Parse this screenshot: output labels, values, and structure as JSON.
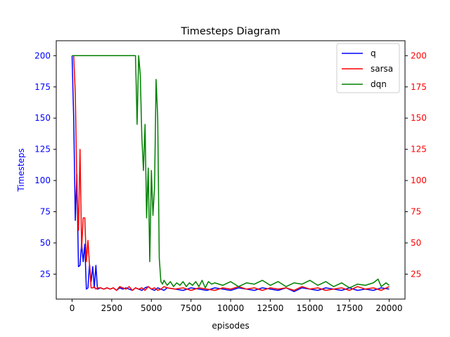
{
  "chart_data": {
    "type": "line",
    "title": "Timesteps Diagram",
    "xlabel": "episodes",
    "ylabel": "Timesteps",
    "xlim": [
      -1000,
      21000
    ],
    "ylim": [
      5,
      212
    ],
    "xticks": [
      0,
      2500,
      5000,
      7500,
      10000,
      12500,
      15000,
      17500,
      20000
    ],
    "yticks": [
      25,
      50,
      75,
      100,
      125,
      150,
      175,
      200
    ],
    "left_axis_color": "#0000ff",
    "right_axis_color": "#ff0000",
    "legend_position": "top-right",
    "grid": false,
    "series": [
      {
        "name": "q",
        "color": "#0000ff",
        "axis": "left",
        "x": [
          0,
          100,
          200,
          300,
          400,
          500,
          600,
          700,
          800,
          900,
          1000,
          1100,
          1200,
          1300,
          1400,
          1500,
          1600,
          1800,
          2000,
          2200,
          2400,
          2600,
          2800,
          3000,
          3200,
          3400,
          3600,
          3800,
          4000,
          4200,
          4400,
          4600,
          4800,
          5000,
          5200,
          5400,
          5600,
          5800,
          6000,
          6500,
          7000,
          7500,
          8000,
          8500,
          9000,
          9500,
          10000,
          10500,
          11000,
          11500,
          12000,
          12500,
          13000,
          13500,
          14000,
          14500,
          15000,
          15500,
          16000,
          16500,
          17000,
          17500,
          18000,
          18500,
          19000,
          19500,
          20000
        ],
        "y": [
          200,
          150,
          68,
          105,
          31,
          32,
          50,
          35,
          49,
          13,
          14,
          33,
          19,
          31,
          14,
          32,
          13,
          14,
          13,
          14,
          13,
          14,
          12,
          14,
          13,
          14,
          13,
          12,
          14,
          13,
          12,
          14,
          15,
          13,
          12,
          14,
          13,
          12,
          14,
          13,
          12,
          14,
          13,
          12,
          14,
          13,
          12,
          14,
          13,
          12,
          14,
          13,
          12,
          14,
          11,
          14,
          13,
          12,
          14,
          13,
          12,
          14,
          12,
          13,
          12,
          14,
          13
        ]
      },
      {
        "name": "sarsa",
        "color": "#ff0000",
        "axis": "right",
        "x": [
          0,
          100,
          200,
          300,
          400,
          500,
          600,
          700,
          800,
          900,
          1000,
          1100,
          1200,
          1300,
          1400,
          1500,
          1600,
          1800,
          2000,
          2200,
          2400,
          2600,
          2800,
          3000,
          3200,
          3400,
          3600,
          3800,
          4000,
          4200,
          4400,
          4600,
          4800,
          5000,
          5200,
          5400,
          5600,
          5800,
          6000,
          6500,
          7000,
          7500,
          8000,
          8500,
          9000,
          9500,
          10000,
          10500,
          11000,
          11500,
          12000,
          12500,
          13000,
          13500,
          14000,
          14500,
          15000,
          15500,
          16000,
          16500,
          17000,
          17500,
          18000,
          18500,
          19000,
          19500,
          20000
        ],
        "y": [
          200,
          200,
          170,
          95,
          60,
          125,
          45,
          70,
          70,
          35,
          52,
          32,
          14,
          14,
          15,
          13,
          14,
          14,
          13,
          14,
          13,
          14,
          12,
          15,
          14,
          13,
          15,
          12,
          14,
          13,
          14,
          12,
          15,
          13,
          14,
          12,
          13,
          15,
          14,
          13,
          14,
          12,
          14,
          13,
          12,
          14,
          13,
          15,
          13,
          14,
          12,
          14,
          13,
          14,
          12,
          15,
          13,
          14,
          12,
          13,
          14,
          12,
          15,
          13,
          14,
          12,
          15
        ]
      },
      {
        "name": "dqn",
        "color": "#008000",
        "axis": "left",
        "x": [
          0,
          500,
          1000,
          1500,
          2000,
          2500,
          3000,
          3500,
          4000,
          4100,
          4200,
          4300,
          4400,
          4500,
          4600,
          4700,
          4800,
          4900,
          5000,
          5100,
          5200,
          5300,
          5400,
          5500,
          5600,
          5700,
          5800,
          6000,
          6200,
          6400,
          6600,
          6800,
          7000,
          7200,
          7400,
          7600,
          7800,
          8000,
          8200,
          8400,
          8600,
          8800,
          9000,
          9500,
          10000,
          10500,
          11000,
          11500,
          12000,
          12500,
          13000,
          13500,
          14000,
          14500,
          15000,
          15500,
          16000,
          16500,
          17000,
          17500,
          18000,
          18500,
          19000,
          19300,
          19500,
          19800,
          20000
        ],
        "y": [
          200,
          200,
          200,
          200,
          200,
          200,
          200,
          200,
          200,
          145,
          200,
          185,
          135,
          108,
          145,
          70,
          110,
          35,
          108,
          72,
          95,
          181,
          150,
          38,
          19,
          17,
          20,
          16,
          19,
          15,
          18,
          16,
          19,
          15,
          18,
          16,
          19,
          15,
          20,
          14,
          19,
          17,
          18,
          16,
          19,
          15,
          18,
          17,
          20,
          16,
          19,
          15,
          18,
          17,
          20,
          16,
          19,
          15,
          18,
          14,
          17,
          16,
          18,
          21,
          15,
          18,
          16
        ]
      }
    ]
  }
}
